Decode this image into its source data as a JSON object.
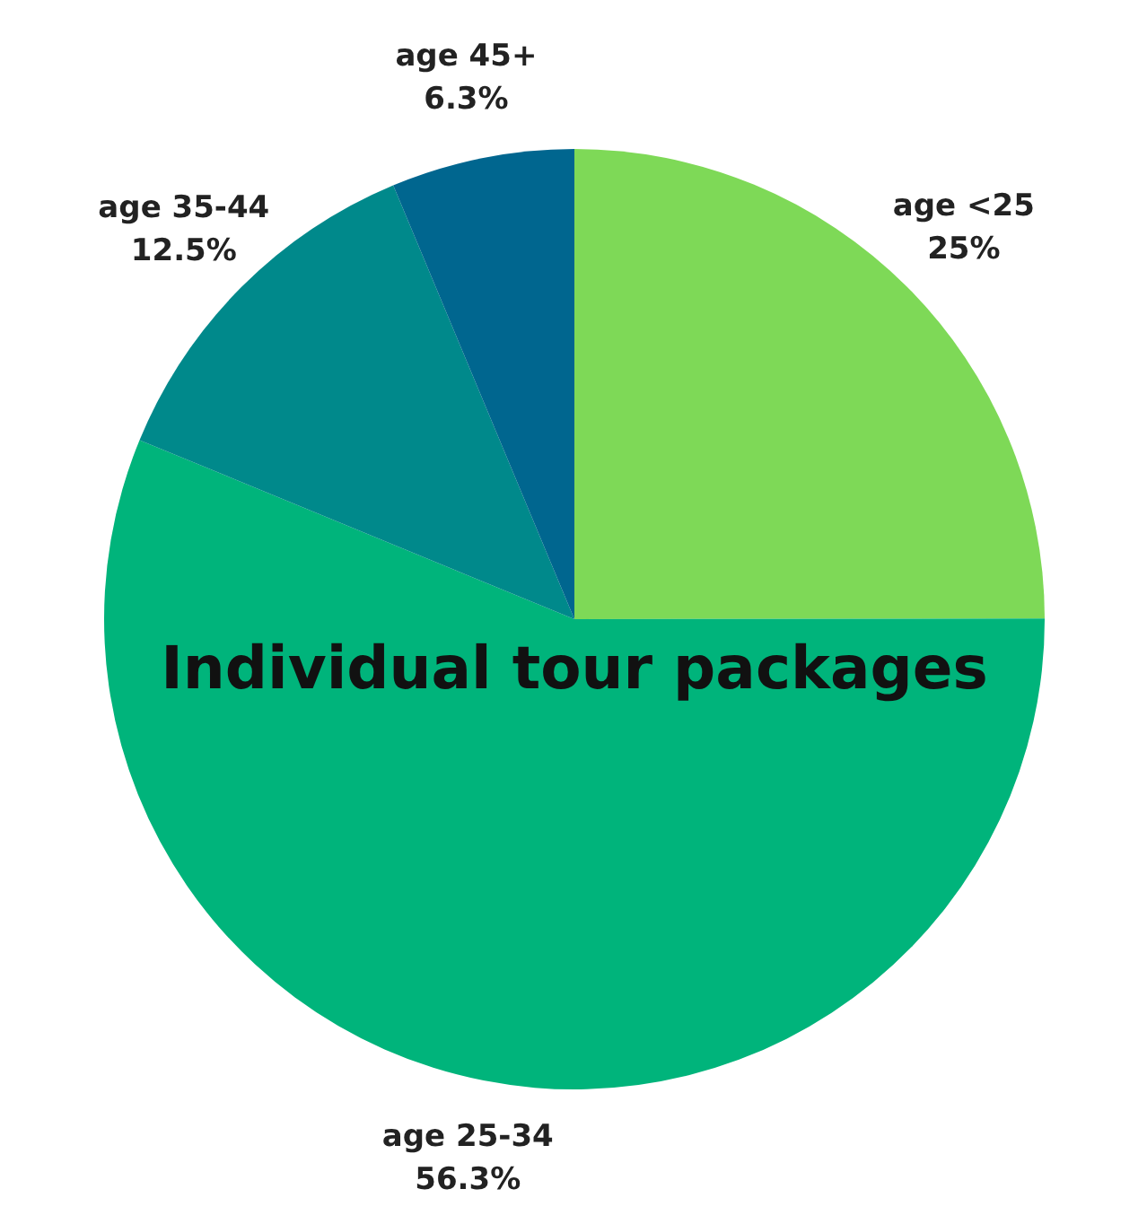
{
  "chart_data": {
    "type": "pie",
    "title": "Individual tour packages",
    "categories": [
      "age <25",
      "age 25-34",
      "age 35-44",
      "age 45+"
    ],
    "values": [
      25,
      56.3,
      12.5,
      6.3
    ],
    "value_labels": [
      "25%",
      "56.3%",
      "12.5%",
      "6.3%"
    ],
    "colors": [
      "#7ed957",
      "#00b47b",
      "#00898b",
      "#00668f"
    ],
    "legend": false
  }
}
